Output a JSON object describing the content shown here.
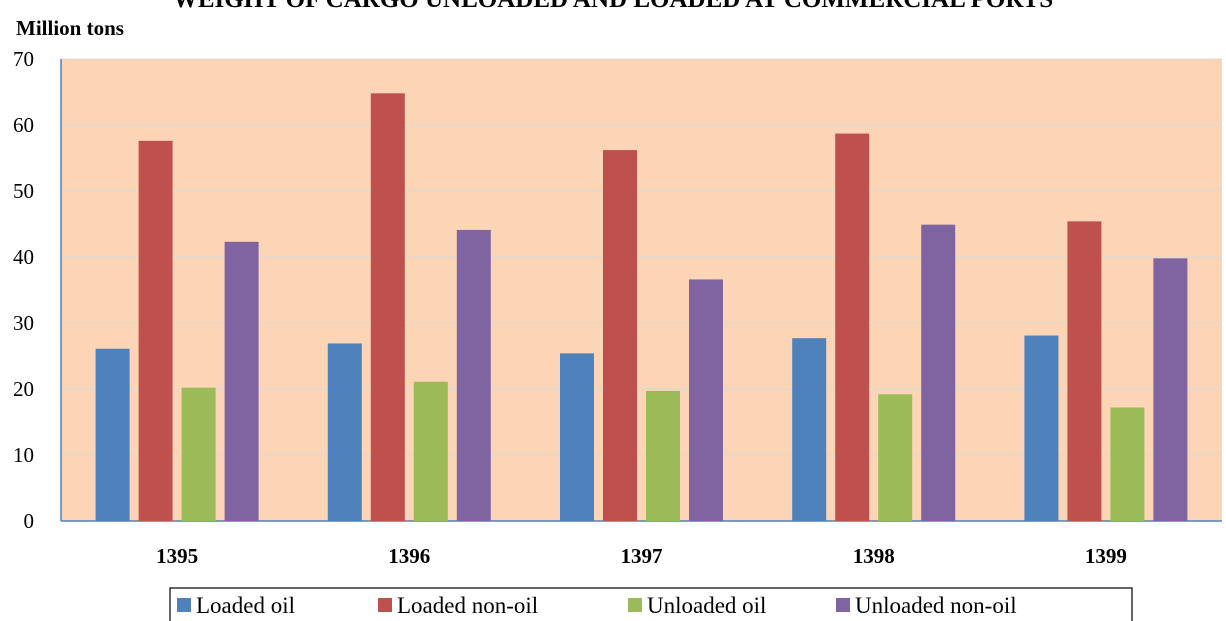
{
  "chart_data": {
    "type": "bar",
    "title": "WEIGHT OF CARGO UNLOADED AND LOADED AT COMMERCIAL PORTS",
    "ylabel": "Million tons",
    "xlabel": "",
    "ylim": [
      0,
      70
    ],
    "yticks": [
      0,
      10,
      20,
      30,
      40,
      50,
      60,
      70
    ],
    "categories": [
      "1395",
      "1396",
      "1397",
      "1398",
      "1399"
    ],
    "series": [
      {
        "name": "Loaded oil",
        "color": "#4F81BD",
        "values": [
          26.1,
          26.9,
          25.4,
          27.7,
          28.1
        ]
      },
      {
        "name": "Loaded non-oil",
        "color": "#C0504D",
        "values": [
          57.6,
          64.8,
          56.2,
          58.7,
          45.4
        ]
      },
      {
        "name": "Unloaded oil",
        "color": "#9BBB59",
        "values": [
          20.2,
          21.1,
          19.7,
          19.2,
          17.2
        ]
      },
      {
        "name": "Unloaded non-oil",
        "color": "#8064A2",
        "values": [
          42.3,
          44.1,
          36.6,
          44.9,
          39.8
        ]
      }
    ],
    "plot_background": "#FBD5B5",
    "grid": true,
    "legend_position": "bottom"
  }
}
